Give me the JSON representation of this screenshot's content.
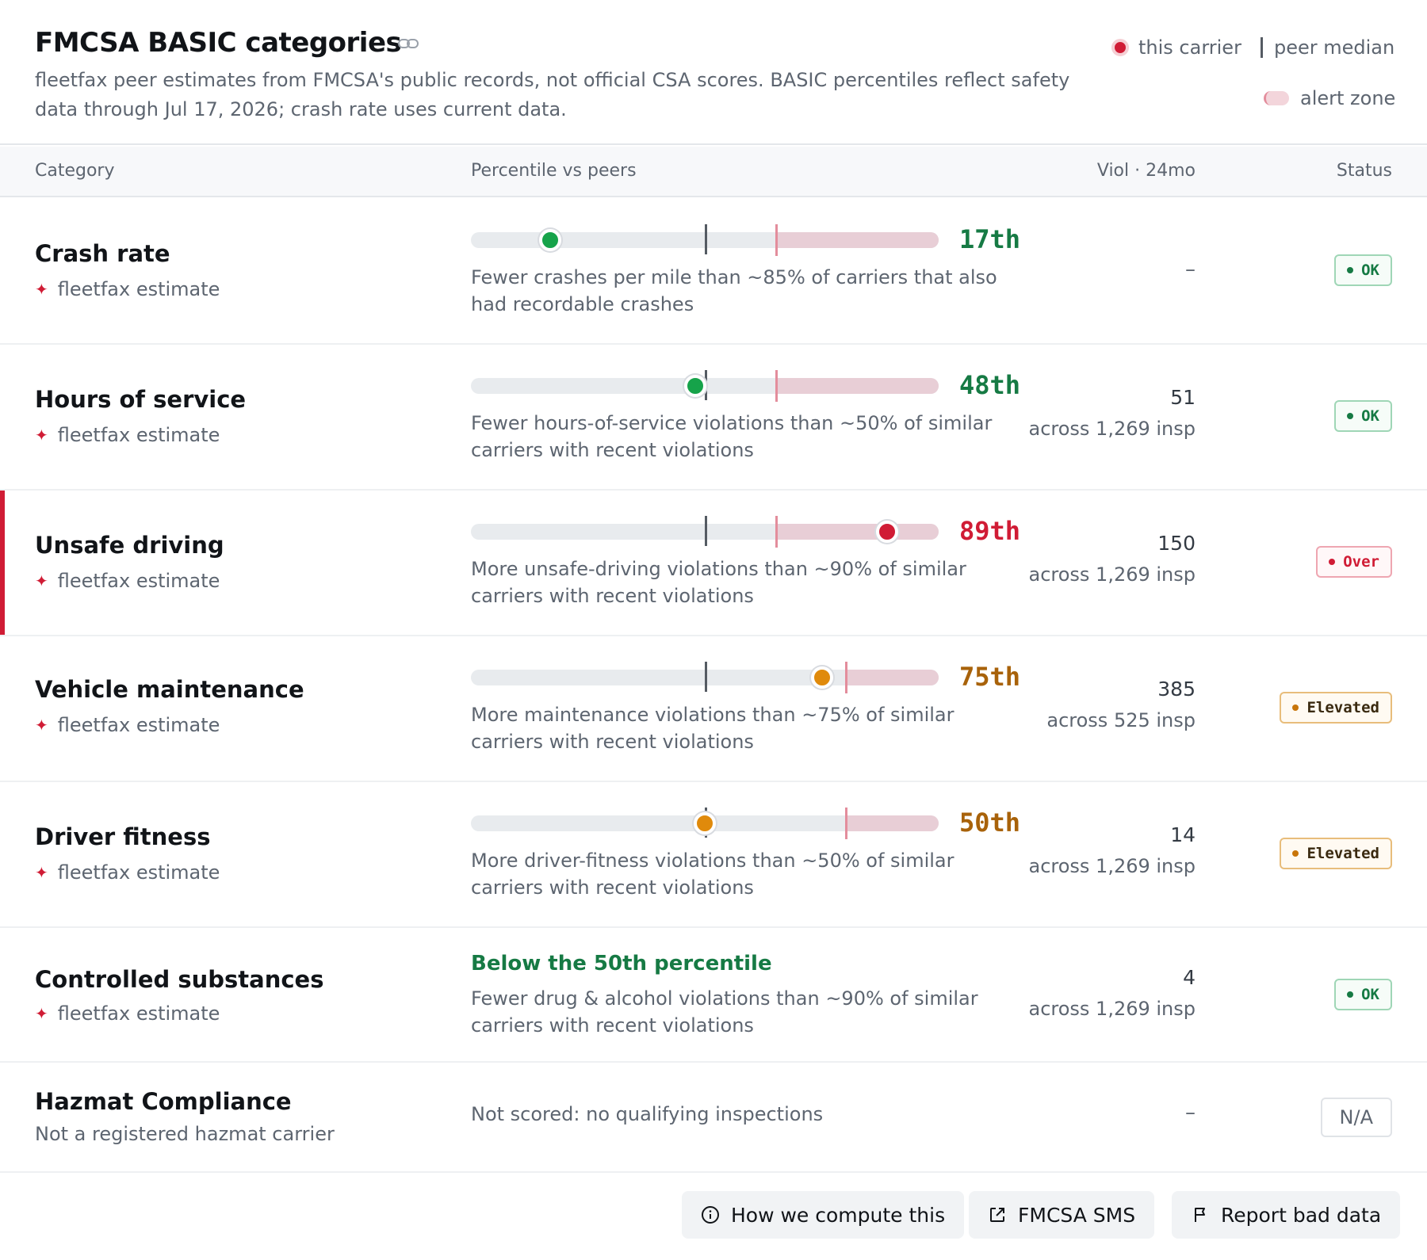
{
  "header": {
    "title": "FMCSA BASIC categories",
    "subtitle": "fleetfax peer estimates from FMCSA's public records, not official CSA scores. BASIC percentiles reflect safety data through Jul 17, 2026; crash rate uses current data.",
    "legend": {
      "carrier": "this carrier",
      "median": "peer median",
      "alert": "alert zone"
    }
  },
  "table": {
    "headers": {
      "category": "Category",
      "percentile": "Percentile vs peers",
      "viol": "Viol · 24mo",
      "status": "Status"
    },
    "estimate_label": "fleetfax estimate",
    "rows": [
      {
        "name": "Crash rate",
        "percentile": 17,
        "percentile_label": "17th",
        "median": 50,
        "alert_threshold": 65,
        "level": "ok",
        "desc": "Fewer crashes per mile than ~85% of carriers that also had recordable crashes",
        "viol": "–",
        "insp": "",
        "status": "OK"
      },
      {
        "name": "Hours of service",
        "percentile": 48,
        "percentile_label": "48th",
        "median": 50,
        "alert_threshold": 65,
        "level": "ok",
        "desc": "Fewer hours-of-service violations than ~50% of similar carriers with recent violations",
        "viol": "51",
        "insp": "across 1,269 insp",
        "status": "OK"
      },
      {
        "name": "Unsafe driving",
        "percentile": 89,
        "percentile_label": "89th",
        "median": 50,
        "alert_threshold": 65,
        "level": "over",
        "desc": "More unsafe-driving violations than ~90% of similar carriers with recent violations",
        "viol": "150",
        "insp": "across 1,269 insp",
        "status": "Over"
      },
      {
        "name": "Vehicle maintenance",
        "percentile": 75,
        "percentile_label": "75th",
        "median": 50,
        "alert_threshold": 80,
        "level": "elevated",
        "desc": "More maintenance violations than ~75% of similar carriers with recent violations",
        "viol": "385",
        "insp": "across 525 insp",
        "status": "Elevated"
      },
      {
        "name": "Driver fitness",
        "percentile": 50,
        "percentile_label": "50th",
        "median": 50,
        "alert_threshold": 80,
        "level": "elevated",
        "desc": "More driver-fitness violations than ~50% of similar carriers with recent violations",
        "viol": "14",
        "insp": "across 1,269 insp",
        "status": "Elevated"
      },
      {
        "name": "Controlled substances",
        "headline": "Below the 50th percentile",
        "level": "ok",
        "desc": "Fewer drug & alcohol violations than ~90% of similar carriers with recent violations",
        "viol": "4",
        "insp": "across 1,269 insp",
        "status": "OK"
      },
      {
        "name": "Hazmat Compliance",
        "sub": "Not a registered hazmat carrier",
        "desc": "Not scored: no qualifying inspections",
        "viol": "–",
        "status": "N/A"
      }
    ]
  },
  "colors": {
    "ok": "#16a34a",
    "ok_text": "#167a44",
    "over": "#d01c35",
    "elevated": "#e08a0b",
    "elevated_text": "#a8620a"
  },
  "footer": {
    "how": "How we compute this",
    "sms": "FMCSA SMS",
    "report": "Report bad data"
  }
}
